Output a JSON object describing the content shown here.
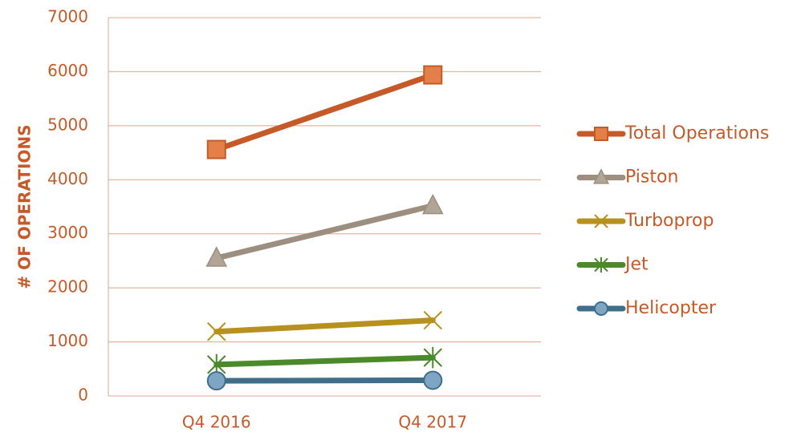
{
  "chart_data": {
    "type": "line",
    "y_label": "# OF OPERATIONS",
    "categories": [
      "Q4 2016",
      "Q4 2017"
    ],
    "series": [
      {
        "name": "Total Operations",
        "color": "#c55a28",
        "marker": "square",
        "values": [
          4560,
          5940
        ]
      },
      {
        "name": "Piston",
        "color": "#9c8f80",
        "marker": "triangle",
        "values": [
          2550,
          3520
        ]
      },
      {
        "name": "Turboprop",
        "color": "#b8901e",
        "marker": "x",
        "values": [
          1190,
          1400
        ]
      },
      {
        "name": "Jet",
        "color": "#4a8a2a",
        "marker": "star",
        "values": [
          580,
          710
        ]
      },
      {
        "name": "Helicopter",
        "color": "#3f6e8a",
        "marker": "circle",
        "values": [
          280,
          290
        ]
      }
    ],
    "ylim": [
      0,
      7000
    ],
    "yticks": [
      0,
      1000,
      2000,
      3000,
      4000,
      5000,
      6000,
      7000
    ],
    "grid": true,
    "legend": "right"
  }
}
